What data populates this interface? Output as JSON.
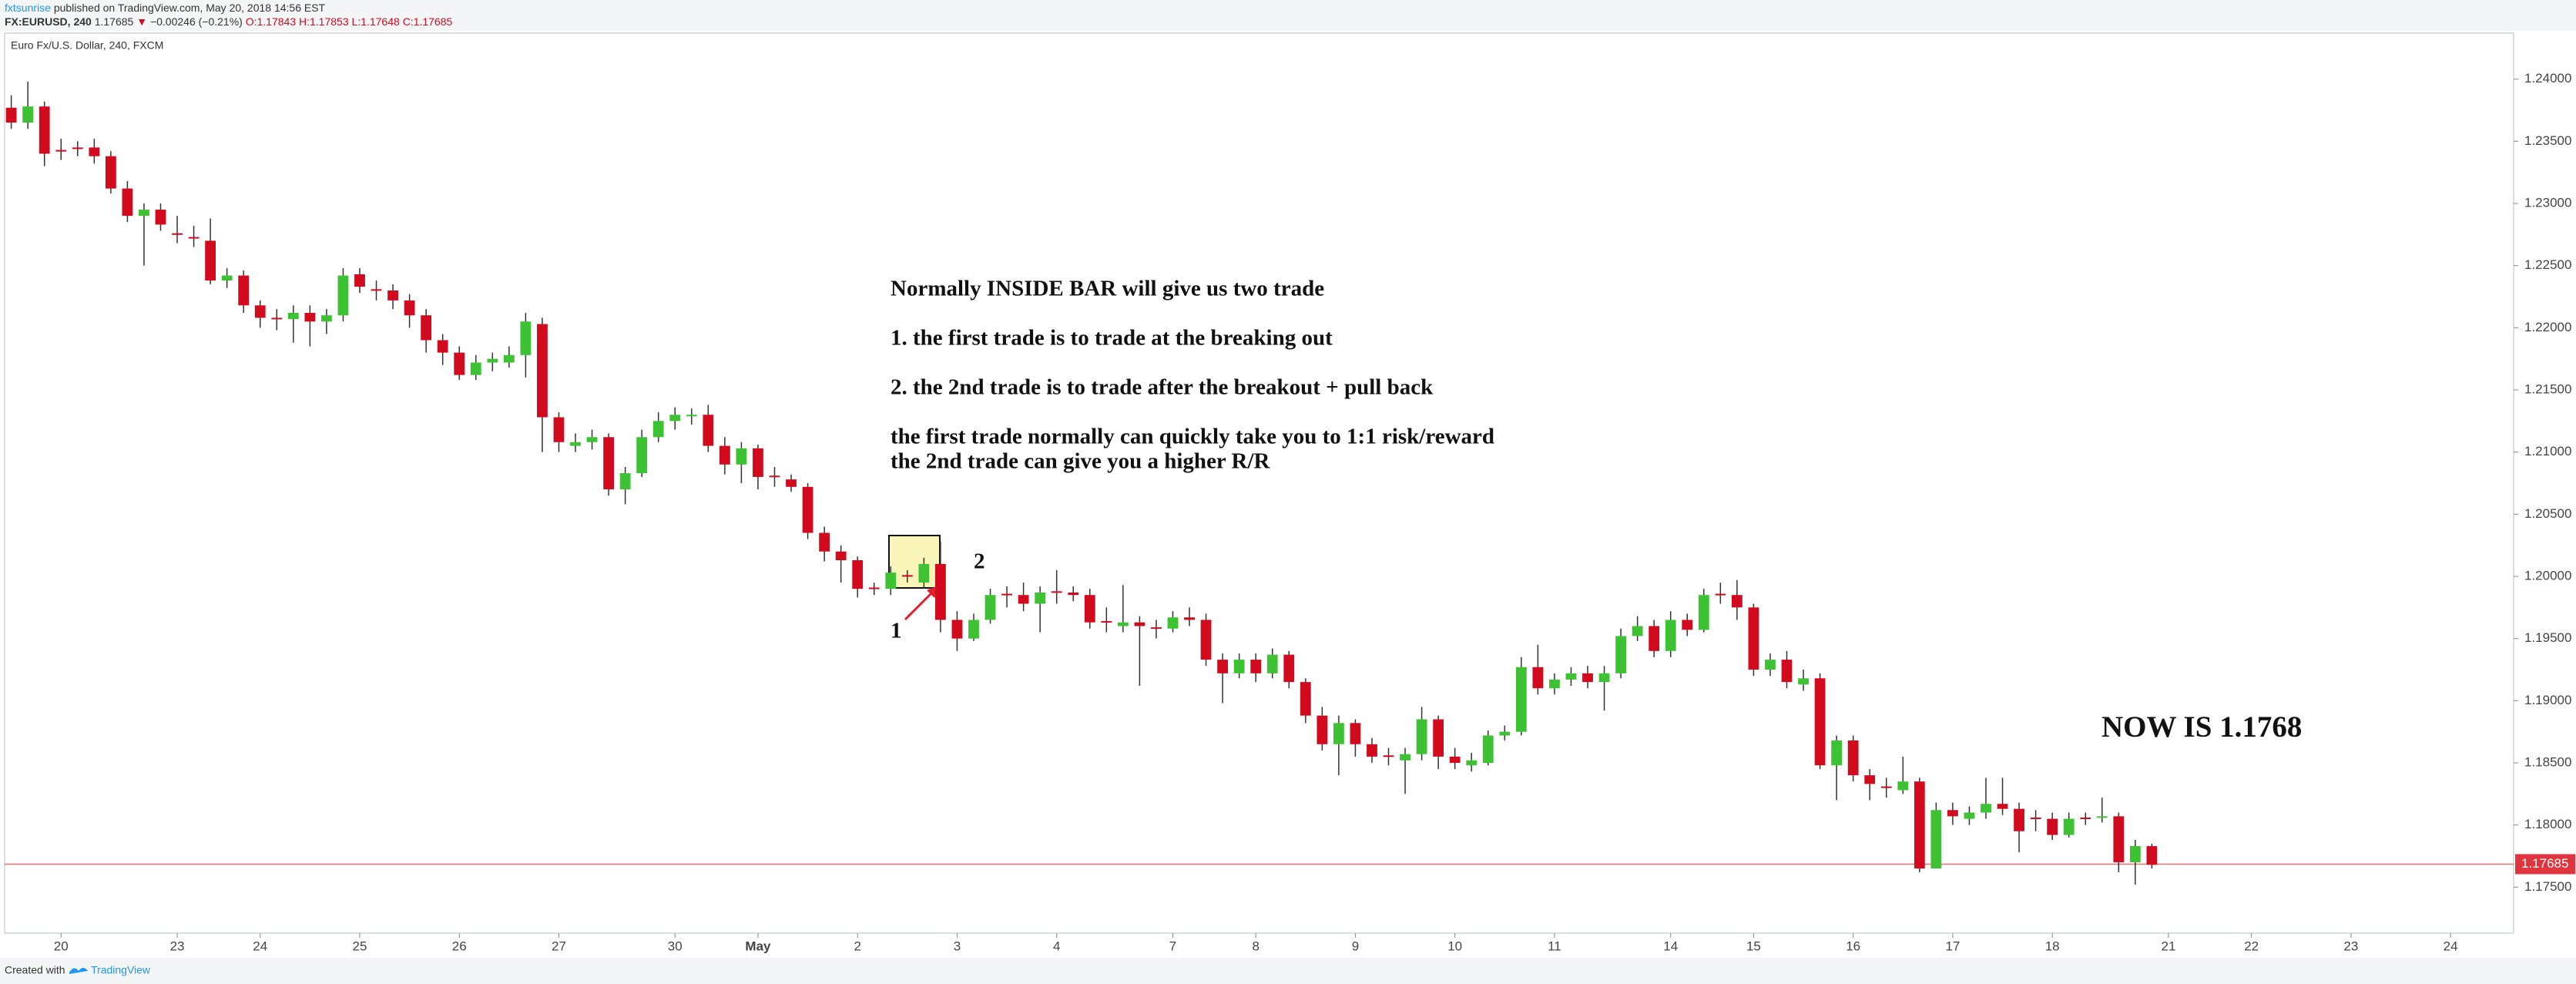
{
  "header": {
    "author": "fxtsunrise",
    "published": "published on TradingView.com, May 20, 2018 14:56 EST"
  },
  "symbol_line": {
    "symbol": "FX:EURUSD, 240",
    "last": "1.17685",
    "arrow": "▼",
    "change": "−0.00246 (−0.21%)",
    "open": "O:1.17843",
    "high": "H:1.17853",
    "low": "L:1.17648",
    "close": "C:1.17685"
  },
  "chart_data": {
    "type": "candlestick",
    "legend": "Euro Fx/U.S. Dollar, 240, FXCM",
    "up_color": "#3cc232",
    "down_color": "#d20a1e",
    "x": [
      -3,
      -2,
      -1,
      0,
      1,
      2,
      3,
      4,
      5,
      6,
      7,
      8,
      9,
      10,
      11,
      12,
      13,
      14,
      15,
      16,
      17,
      18,
      19,
      20,
      21,
      22,
      23,
      24,
      25,
      26,
      27,
      28,
      29,
      30,
      31,
      32,
      33,
      34,
      35,
      36,
      37,
      38,
      39,
      40,
      41,
      42,
      43,
      44,
      45,
      46,
      47,
      48,
      49,
      50,
      51,
      52,
      53,
      54,
      55,
      56,
      57,
      58,
      59,
      60,
      61,
      62,
      63,
      64,
      65,
      66,
      67,
      68,
      69,
      70,
      71,
      72,
      73,
      74,
      75,
      76,
      77,
      78,
      79,
      80,
      81,
      82,
      83,
      84,
      85,
      86,
      87,
      88,
      89,
      90,
      91,
      92,
      93,
      94,
      95,
      96,
      97,
      98,
      99,
      100,
      101,
      102,
      103,
      104,
      105,
      106,
      107,
      108,
      109,
      110,
      111,
      112,
      113,
      114,
      115,
      116,
      117,
      118,
      119,
      120,
      121,
      122,
      123,
      124,
      125,
      126
    ],
    "open": [
      1.2377,
      1.2365,
      1.2378,
      1.2343,
      1.2345,
      1.2345,
      1.2338,
      1.2312,
      1.229,
      1.2295,
      1.2276,
      1.2273,
      1.227,
      1.2238,
      1.2242,
      1.2218,
      1.2208,
      1.2207,
      1.2212,
      1.2205,
      1.221,
      1.2243,
      1.2231,
      1.223,
      1.2222,
      1.221,
      1.219,
      1.218,
      1.2162,
      1.2172,
      1.2172,
      1.2178,
      1.2203,
      1.2128,
      1.2105,
      1.2108,
      1.2112,
      1.207,
      1.2083,
      1.2112,
      1.2125,
      1.2129,
      1.213,
      1.2105,
      1.209,
      1.2103,
      1.2081,
      1.2078,
      1.2072,
      1.2035,
      1.202,
      1.2013,
      1.1991,
      1.199,
      1.2001,
      1.1995,
      1.201,
      1.1965,
      1.195,
      1.1965,
      1.1986,
      1.1985,
      1.1978,
      1.1988,
      1.1987,
      1.1985,
      1.1964,
      1.196,
      1.1963,
      1.1959,
      1.1958,
      1.1967,
      1.1965,
      1.1933,
      1.1922,
      1.1933,
      1.1922,
      1.1937,
      1.1915,
      1.1888,
      1.1865,
      1.1882,
      1.1865,
      1.1856,
      1.1852,
      1.1857,
      1.1885,
      1.1855,
      1.1848,
      1.185,
      1.1872,
      1.1875,
      1.1927,
      1.191,
      1.1917,
      1.1922,
      1.1915,
      1.1922,
      1.1952,
      1.196,
      1.194,
      1.1965,
      1.1957,
      1.1986,
      1.1985,
      1.1975,
      1.1925,
      1.1933,
      1.1913,
      1.1918,
      1.1848,
      1.1868,
      1.184,
      1.1831,
      1.1828,
      1.1835,
      1.1765,
      1.1812,
      1.1805,
      1.181,
      1.1817,
      1.1813,
      1.1806,
      1.1805,
      1.1792,
      1.1806,
      1.1806,
      1.1807,
      1.177,
      1.1783
    ],
    "high": [
      1.2387,
      1.2398,
      1.2382,
      1.2352,
      1.235,
      1.2352,
      1.2342,
      1.2318,
      1.23,
      1.23,
      1.229,
      1.2282,
      1.2288,
      1.2248,
      1.2246,
      1.2222,
      1.2215,
      1.2218,
      1.2218,
      1.2215,
      1.2248,
      1.2248,
      1.2238,
      1.2235,
      1.2227,
      1.2215,
      1.2195,
      1.2185,
      1.2178,
      1.218,
      1.2185,
      1.2212,
      1.2208,
      1.2132,
      1.2115,
      1.2118,
      1.2115,
      1.2088,
      1.2118,
      1.2132,
      1.2136,
      1.2135,
      1.2138,
      1.2112,
      1.2108,
      1.2106,
      1.2088,
      1.2082,
      1.2075,
      1.204,
      1.2025,
      1.2016,
      1.1995,
      1.2008,
      1.2005,
      1.2015,
      1.2028,
      1.1972,
      1.197,
      1.199,
      1.1992,
      1.1995,
      1.1992,
      1.2005,
      1.1992,
      1.199,
      1.1975,
      1.1993,
      1.1968,
      1.1965,
      1.1972,
      1.1975,
      1.197,
      1.1938,
      1.1938,
      1.1938,
      1.1942,
      1.194,
      1.1918,
      1.1895,
      1.1888,
      1.1885,
      1.187,
      1.1862,
      1.1862,
      1.1895,
      1.1888,
      1.1862,
      1.1858,
      1.1876,
      1.188,
      1.1935,
      1.1945,
      1.1922,
      1.1927,
      1.1928,
      1.1928,
      1.1958,
      1.1968,
      1.1965,
      1.1972,
      1.197,
      1.199,
      1.1995,
      1.1997,
      1.1978,
      1.1938,
      1.194,
      1.1925,
      1.1922,
      1.1872,
      1.1872,
      1.1845,
      1.1838,
      1.1855,
      1.1838,
      1.1818,
      1.1818,
      1.1815,
      1.1838,
      1.1838,
      1.1818,
      1.1812,
      1.181,
      1.181,
      1.181,
      1.1822,
      1.181,
      1.1788,
      1.1785
    ],
    "low": [
      1.236,
      1.236,
      1.233,
      1.2335,
      1.2338,
      1.2332,
      1.2308,
      1.2285,
      1.225,
      1.2278,
      1.2268,
      1.2265,
      1.2235,
      1.2232,
      1.2212,
      1.22,
      1.2198,
      1.2188,
      1.2185,
      1.2195,
      1.2205,
      1.2228,
      1.2222,
      1.2215,
      1.22,
      1.218,
      1.217,
      1.2158,
      1.2158,
      1.2165,
      1.2168,
      1.216,
      1.21,
      1.21,
      1.21,
      1.2102,
      1.2065,
      1.2058,
      1.208,
      1.2108,
      1.2118,
      1.2122,
      1.21,
      1.2082,
      1.2075,
      1.207,
      1.2072,
      1.2068,
      1.203,
      1.2012,
      1.1995,
      1.1983,
      1.1985,
      1.1985,
      1.1995,
      1.199,
      1.1955,
      1.194,
      1.1948,
      1.1962,
      1.1975,
      1.1972,
      1.1955,
      1.1978,
      1.198,
      1.1958,
      1.1955,
      1.1955,
      1.1912,
      1.195,
      1.1955,
      1.196,
      1.1928,
      1.1898,
      1.1918,
      1.1915,
      1.1918,
      1.191,
      1.1882,
      1.186,
      1.184,
      1.1855,
      1.185,
      1.1848,
      1.1825,
      1.1852,
      1.1845,
      1.1845,
      1.1843,
      1.1848,
      1.1868,
      1.1872,
      1.1905,
      1.1905,
      1.1912,
      1.191,
      1.1892,
      1.1918,
      1.1948,
      1.1935,
      1.1935,
      1.1952,
      1.1955,
      1.1978,
      1.1965,
      1.192,
      1.192,
      1.191,
      1.1908,
      1.1845,
      1.182,
      1.1835,
      1.182,
      1.1822,
      1.1825,
      1.1762,
      1.1765,
      1.18,
      1.18,
      1.1805,
      1.1808,
      1.1778,
      1.1795,
      1.1788,
      1.179,
      1.18,
      1.1802,
      1.1762,
      1.1752,
      1.1765
    ],
    "close": [
      1.2365,
      1.2378,
      1.234,
      1.2342,
      1.2344,
      1.2338,
      1.2312,
      1.229,
      1.2295,
      1.2283,
      1.2275,
      1.2272,
      1.2238,
      1.2242,
      1.2218,
      1.2208,
      1.2207,
      1.2212,
      1.2205,
      1.221,
      1.2242,
      1.2233,
      1.223,
      1.2222,
      1.221,
      1.219,
      1.218,
      1.2162,
      1.2172,
      1.2175,
      1.2178,
      1.2205,
      1.2128,
      1.2108,
      1.2108,
      1.2112,
      1.207,
      1.2083,
      1.2112,
      1.2125,
      1.213,
      1.213,
      1.2105,
      1.209,
      1.2103,
      1.208,
      1.208,
      1.2072,
      1.2035,
      1.202,
      1.2013,
      1.199,
      1.199,
      1.2003,
      1.2,
      1.201,
      1.1965,
      1.195,
      1.1965,
      1.1985,
      1.1985,
      1.1978,
      1.1987,
      1.1987,
      1.1985,
      1.1963,
      1.1963,
      1.1963,
      1.196,
      1.1958,
      1.1967,
      1.1965,
      1.1933,
      1.1922,
      1.1933,
      1.1922,
      1.1937,
      1.1915,
      1.1888,
      1.1865,
      1.1882,
      1.1865,
      1.1855,
      1.1855,
      1.1857,
      1.1885,
      1.1855,
      1.185,
      1.1852,
      1.1872,
      1.1875,
      1.1927,
      1.191,
      1.1917,
      1.1922,
      1.1915,
      1.1922,
      1.1952,
      1.196,
      1.194,
      1.1965,
      1.1957,
      1.1985,
      1.1985,
      1.1975,
      1.1925,
      1.1933,
      1.1915,
      1.1918,
      1.1848,
      1.1868,
      1.184,
      1.1833,
      1.183,
      1.1835,
      1.1765,
      1.1812,
      1.1807,
      1.181,
      1.1817,
      1.1813,
      1.1795,
      1.1805,
      1.1792,
      1.1805,
      1.1805,
      1.1807,
      1.177,
      1.1783,
      1.1768
    ],
    "xlim": [
      -3.4,
      147.8
    ],
    "xticks": [
      {
        "value": 0,
        "label": "20"
      },
      {
        "value": 7,
        "label": "23"
      },
      {
        "value": 12,
        "label": "24"
      },
      {
        "value": 18,
        "label": "25"
      },
      {
        "value": 24,
        "label": "26"
      },
      {
        "value": 30,
        "label": "27"
      },
      {
        "value": 37,
        "label": "30"
      },
      {
        "value": 42,
        "label": "May"
      },
      {
        "value": 48,
        "label": "2"
      },
      {
        "value": 54,
        "label": "3"
      },
      {
        "value": 60,
        "label": "4"
      },
      {
        "value": 67,
        "label": "7"
      },
      {
        "value": 72,
        "label": "8"
      },
      {
        "value": 78,
        "label": "9"
      },
      {
        "value": 84,
        "label": "10"
      },
      {
        "value": 90,
        "label": "11"
      },
      {
        "value": 97,
        "label": "14"
      },
      {
        "value": 102,
        "label": "15"
      },
      {
        "value": 108,
        "label": "16"
      },
      {
        "value": 114,
        "label": "17"
      },
      {
        "value": 120,
        "label": "18"
      },
      {
        "value": 127,
        "label": "21"
      },
      {
        "value": 132,
        "label": "22"
      },
      {
        "value": 138,
        "label": "23"
      },
      {
        "value": 144,
        "label": "24"
      }
    ],
    "ylim": [
      1.1713,
      1.2437
    ],
    "yticks": [
      {
        "value": 1.175,
        "label": "1.17500"
      },
      {
        "value": 1.18,
        "label": "1.18000"
      },
      {
        "value": 1.185,
        "label": "1.18500"
      },
      {
        "value": 1.19,
        "label": "1.19000"
      },
      {
        "value": 1.195,
        "label": "1.19500"
      },
      {
        "value": 1.2,
        "label": "1.20000"
      },
      {
        "value": 1.205,
        "label": "1.20500"
      },
      {
        "value": 1.21,
        "label": "1.21000"
      },
      {
        "value": 1.215,
        "label": "1.21500"
      },
      {
        "value": 1.22,
        "label": "1.22000"
      },
      {
        "value": 1.225,
        "label": "1.22500"
      },
      {
        "value": 1.23,
        "label": "1.23000"
      },
      {
        "value": 1.235,
        "label": "1.23500"
      },
      {
        "value": 1.24,
        "label": "1.24000"
      }
    ],
    "last_price": {
      "value": 1.17685,
      "label": "1.17685"
    },
    "last_price_color": "#e0353f",
    "annotations": {
      "note": [
        "Normally INSIDE BAR will give us two trade",
        "1. the first trade is to trade at the breaking out",
        "2. the 2nd trade is to trade after the breakout + pull back",
        "the first trade normally can quickly take you to 1:1 risk/reward",
        "the 2nd trade can give you a higher R/R"
      ],
      "label_1": "1",
      "label_2": "2",
      "now": "NOW IS 1.1768"
    }
  },
  "footer": {
    "created": "Created with",
    "brand": "TradingView"
  }
}
